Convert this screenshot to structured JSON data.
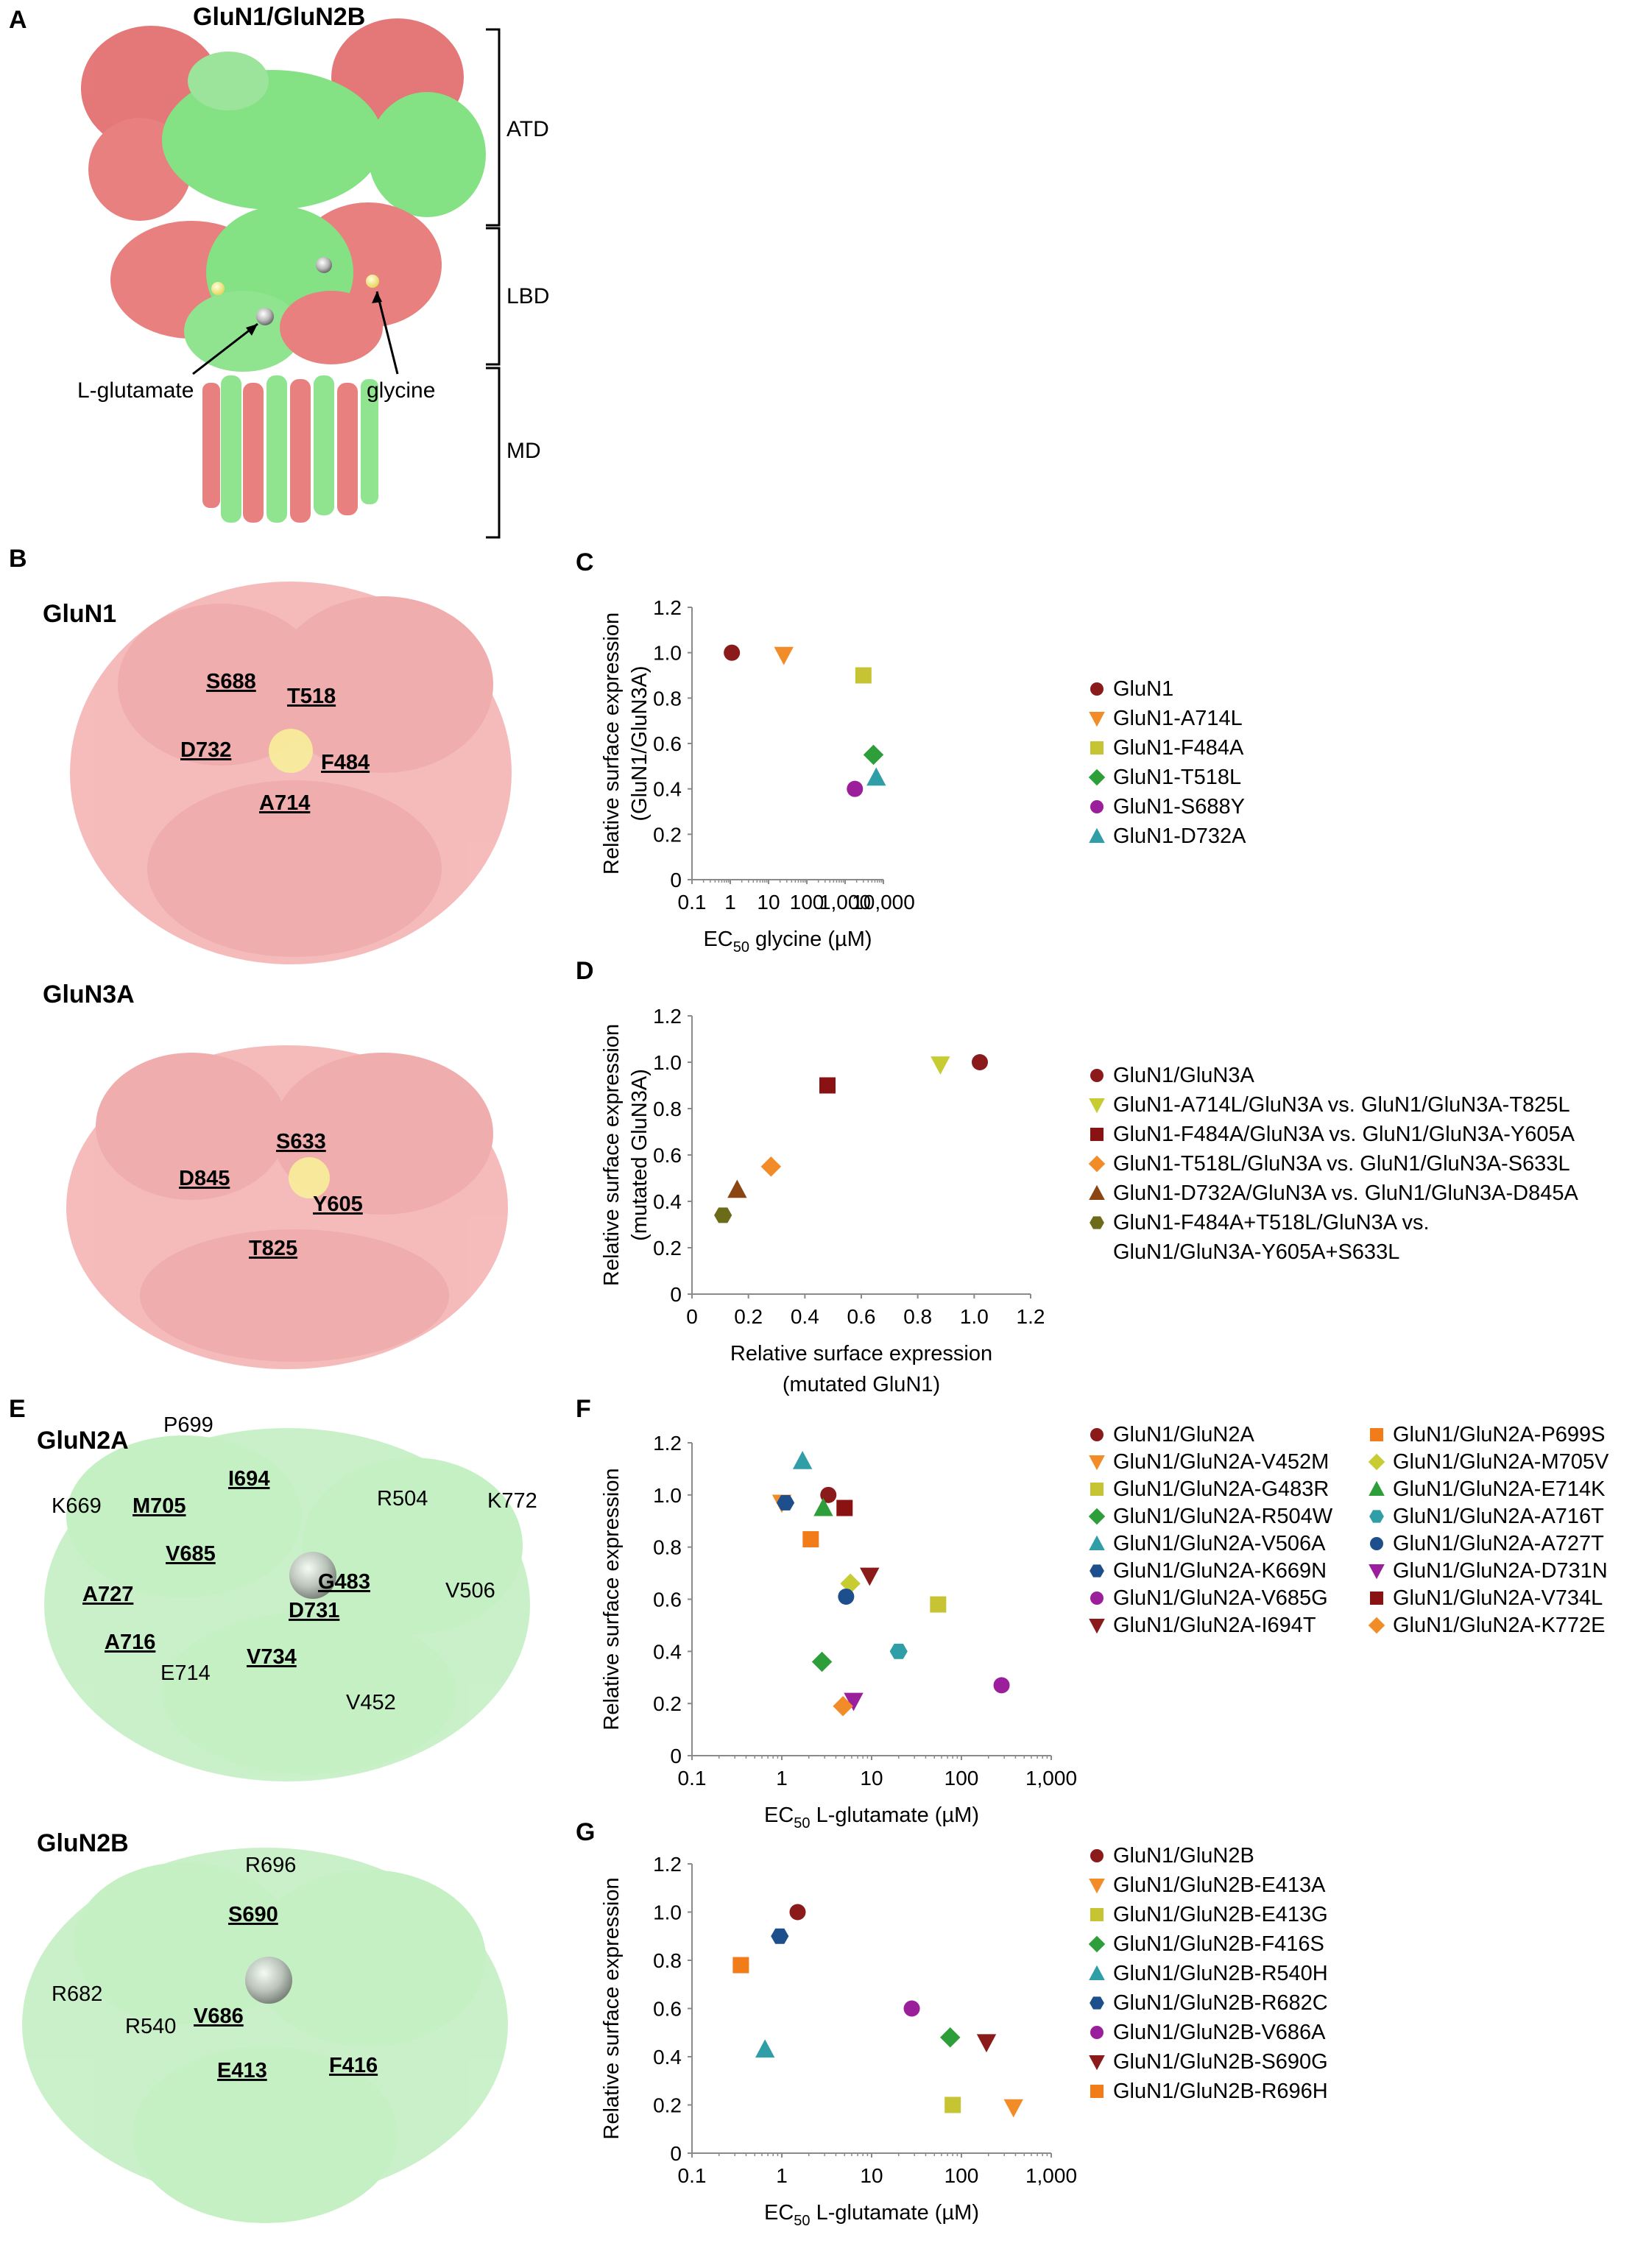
{
  "panels": {
    "A": {
      "label": "A",
      "title": "GluN1/GluN2B",
      "domains": [
        "ATD",
        "LBD",
        "MD"
      ],
      "annotations": [
        "L-glutamate",
        "glycine"
      ]
    },
    "B": {
      "label": "B",
      "top_title": "GluN1",
      "top_residues": [
        "S688",
        "T518",
        "D732",
        "F484",
        "A714"
      ],
      "bottom_title": "GluN3A",
      "bottom_residues": [
        "S633",
        "D845",
        "Y605",
        "T825"
      ]
    },
    "E": {
      "label": "E",
      "top_title": "GluN2A",
      "top_residues_underlined": [
        "I694",
        "M705",
        "V685",
        "G483",
        "A727",
        "D731",
        "A716",
        "V734"
      ],
      "top_residues_plain": [
        "P699",
        "K669",
        "R504",
        "K772",
        "V506",
        "E714",
        "V452"
      ],
      "bottom_title": "GluN2B",
      "bottom_residues_underlined": [
        "S690",
        "V686",
        "E413",
        "F416"
      ],
      "bottom_residues_plain": [
        "R696",
        "R682",
        "R540"
      ]
    }
  },
  "chart_data": [
    {
      "id": "C",
      "type": "scatter",
      "label": "C",
      "xscale": "log",
      "xlim": [
        0.1,
        10000
      ],
      "xticks": [
        0.1,
        1,
        10,
        100,
        1000,
        10000
      ],
      "xtick_labels": [
        "0.1",
        "1",
        "10",
        "100",
        "1,000",
        "10,000"
      ],
      "ylim": [
        0,
        1.2
      ],
      "yticks": [
        0,
        0.2,
        0.4,
        0.6,
        0.8,
        1.0,
        1.2
      ],
      "ytick_labels": [
        "0",
        "0.2",
        "0.4",
        "0.6",
        "0.8",
        "1.0",
        "1.2"
      ],
      "xlabel_pre": "EC",
      "xlabel_sub": "50",
      "xlabel_post": " glycine (µM)",
      "ylabel": [
        "Relative surface expression",
        "(GluN1/GluN3A)"
      ],
      "series": [
        {
          "name": "GluN1",
          "x": 1.1,
          "y": 1.0,
          "marker": "circle",
          "color": "#8b1a1a"
        },
        {
          "name": "GluN1-A714L",
          "x": 25,
          "y": 0.99,
          "marker": "tri-down",
          "color": "#f28c28"
        },
        {
          "name": "GluN1-F484A",
          "x": 3000,
          "y": 0.9,
          "marker": "square",
          "color": "#c7c433"
        },
        {
          "name": "GluN1-T518L",
          "x": 5500,
          "y": 0.55,
          "marker": "diamond",
          "color": "#2e9e3a"
        },
        {
          "name": "GluN1-S688Y",
          "x": 1800,
          "y": 0.4,
          "marker": "circle",
          "color": "#9b1f9b"
        },
        {
          "name": "GluN1-D732A",
          "x": 6500,
          "y": 0.45,
          "marker": "tri-up",
          "color": "#2f9ea6"
        }
      ]
    },
    {
      "id": "D",
      "type": "scatter",
      "label": "D",
      "xscale": "linear",
      "xlim": [
        0,
        1.2
      ],
      "xticks": [
        0,
        0.2,
        0.4,
        0.6,
        0.8,
        1.0,
        1.2
      ],
      "xtick_labels": [
        "0",
        "0.2",
        "0.4",
        "0.6",
        "0.8",
        "1.0",
        "1.2"
      ],
      "ylim": [
        0,
        1.2
      ],
      "yticks": [
        0,
        0.2,
        0.4,
        0.6,
        0.8,
        1.0,
        1.2
      ],
      "ytick_labels": [
        "0",
        "0.2",
        "0.4",
        "0.6",
        "0.8",
        "1.0",
        "1.2"
      ],
      "xlabel_lines": [
        "Relative surface expression",
        "(mutated GluN1)"
      ],
      "ylabel": [
        "Relative surface expression",
        "(mutated GluN3A)"
      ],
      "series": [
        {
          "name": "GluN1/GluN3A",
          "x": 1.02,
          "y": 1.0,
          "marker": "circle",
          "color": "#8b1a1a"
        },
        {
          "name": "GluN1-A714L/GluN3A vs. GluN1/GluN3A-T825L",
          "x": 0.88,
          "y": 0.99,
          "marker": "tri-down",
          "color": "#c7cc33"
        },
        {
          "name": "GluN1-F484A/GluN3A vs. GluN1/GluN3A-Y605A",
          "x": 0.48,
          "y": 0.9,
          "marker": "square",
          "color": "#8b1212"
        },
        {
          "name": "GluN1-T518L/GluN3A vs. GluN1/GluN3A-S633L",
          "x": 0.28,
          "y": 0.55,
          "marker": "diamond",
          "color": "#f28c28"
        },
        {
          "name": "GluN1-D732A/GluN3A vs. GluN1/GluN3A-D845A",
          "x": 0.16,
          "y": 0.45,
          "marker": "tri-up",
          "color": "#8b4513"
        },
        {
          "name": "GluN1-F484A+T518L/GluN3A vs.",
          "name2": "GluN1/GluN3A-Y605A+S633L",
          "x": 0.11,
          "y": 0.34,
          "marker": "hexagon",
          "color": "#6b6b1a"
        }
      ]
    },
    {
      "id": "F",
      "type": "scatter",
      "label": "F",
      "xscale": "log",
      "xlim": [
        0.1,
        1000
      ],
      "xticks": [
        0.1,
        1,
        10,
        100,
        1000
      ],
      "xtick_labels": [
        "0.1",
        "1",
        "10",
        "100",
        "1,000"
      ],
      "ylim": [
        0,
        1.2
      ],
      "yticks": [
        0,
        0.2,
        0.4,
        0.6,
        0.8,
        1.0,
        1.2
      ],
      "ytick_labels": [
        "0",
        "0.2",
        "0.4",
        "0.6",
        "0.8",
        "1.0",
        "1.2"
      ],
      "xlabel_pre": "EC",
      "xlabel_sub": "50",
      "xlabel_post": " L-glutamate (µM)",
      "ylabel": [
        "Relative surface expression"
      ],
      "series": [
        {
          "name": "GluN1/GluN2A",
          "x": 3.3,
          "y": 1.0,
          "marker": "circle",
          "color": "#8b1a1a"
        },
        {
          "name": "GluN1/GluN2A-V452M",
          "x": 1.0,
          "y": 0.97,
          "marker": "tri-down",
          "color": "#f28c28"
        },
        {
          "name": "GluN1/GluN2A-G483R",
          "x": 55,
          "y": 0.58,
          "marker": "square",
          "color": "#c7c433"
        },
        {
          "name": "GluN1/GluN2A-R504W",
          "x": 2.8,
          "y": 0.36,
          "marker": "diamond",
          "color": "#2e9e3a"
        },
        {
          "name": "GluN1/GluN2A-V506A",
          "x": 1.7,
          "y": 1.13,
          "marker": "tri-up",
          "color": "#2f9ea6"
        },
        {
          "name": "GluN1/GluN2A-K669N",
          "x": 1.1,
          "y": 0.97,
          "marker": "hexagon",
          "color": "#1c4f8c"
        },
        {
          "name": "GluN1/GluN2A-V685G",
          "x": 280,
          "y": 0.27,
          "marker": "circle",
          "color": "#9b1f9b"
        },
        {
          "name": "GluN1/GluN2A-I694T",
          "x": 9.5,
          "y": 0.69,
          "marker": "tri-down",
          "color": "#8b1a1a"
        },
        {
          "name": "GluN1/GluN2A-P699S",
          "x": 2.1,
          "y": 0.83,
          "marker": "square",
          "color": "#f27c1a"
        },
        {
          "name": "GluN1/GluN2A-M705V",
          "x": 5.8,
          "y": 0.66,
          "marker": "diamond",
          "color": "#c7cc33"
        },
        {
          "name": "GluN1/GluN2A-E714K",
          "x": 2.9,
          "y": 0.95,
          "marker": "tri-up",
          "color": "#2e9e3a"
        },
        {
          "name": "GluN1/GluN2A-A716T",
          "x": 20,
          "y": 0.4,
          "marker": "hexagon",
          "color": "#2f9ea6"
        },
        {
          "name": "GluN1/GluN2A-A727T",
          "x": 5.2,
          "y": 0.61,
          "marker": "circle",
          "color": "#1c4f8c"
        },
        {
          "name": "GluN1/GluN2A-D731N",
          "x": 6.3,
          "y": 0.21,
          "marker": "tri-down",
          "color": "#9b1f9b"
        },
        {
          "name": "GluN1/GluN2A-V734L",
          "x": 5.0,
          "y": 0.95,
          "marker": "square",
          "color": "#8b1212"
        },
        {
          "name": "GluN1/GluN2A-K772E",
          "x": 4.8,
          "y": 0.19,
          "marker": "diamond",
          "color": "#f28c28"
        }
      ]
    },
    {
      "id": "G",
      "type": "scatter",
      "label": "G",
      "xscale": "log",
      "xlim": [
        0.1,
        1000
      ],
      "xticks": [
        0.1,
        1,
        10,
        100,
        1000
      ],
      "xtick_labels": [
        "0.1",
        "1",
        "10",
        "100",
        "1,000"
      ],
      "ylim": [
        0,
        1.2
      ],
      "yticks": [
        0,
        0.2,
        0.4,
        0.6,
        0.8,
        1.0,
        1.2
      ],
      "ytick_labels": [
        "0",
        "0.2",
        "0.4",
        "0.6",
        "0.8",
        "1.0",
        "1.2"
      ],
      "xlabel_pre": "EC",
      "xlabel_sub": "50",
      "xlabel_post": " L-glutamate (µM)",
      "ylabel": [
        "Relative surface expression"
      ],
      "series": [
        {
          "name": "GluN1/GluN2B",
          "x": 1.5,
          "y": 1.0,
          "marker": "circle",
          "color": "#8b1a1a"
        },
        {
          "name": "GluN1/GluN2B-E413A",
          "x": 380,
          "y": 0.19,
          "marker": "tri-down",
          "color": "#f28c28"
        },
        {
          "name": "GluN1/GluN2B-E413G",
          "x": 80,
          "y": 0.2,
          "marker": "square",
          "color": "#c7c433"
        },
        {
          "name": "GluN1/GluN2B-F416S",
          "x": 75,
          "y": 0.48,
          "marker": "diamond",
          "color": "#2e9e3a"
        },
        {
          "name": "GluN1/GluN2B-R540H",
          "x": 0.65,
          "y": 0.43,
          "marker": "tri-up",
          "color": "#2f9ea6"
        },
        {
          "name": "GluN1/GluN2B-R682C",
          "x": 0.95,
          "y": 0.9,
          "marker": "hexagon",
          "color": "#1c4f8c"
        },
        {
          "name": "GluN1/GluN2B-V686A",
          "x": 28,
          "y": 0.6,
          "marker": "circle",
          "color": "#9b1f9b"
        },
        {
          "name": "GluN1/GluN2B-S690G",
          "x": 190,
          "y": 0.46,
          "marker": "tri-down",
          "color": "#8b1a1a"
        },
        {
          "name": "GluN1/GluN2B-R696H",
          "x": 0.35,
          "y": 0.78,
          "marker": "square",
          "color": "#f27c1a"
        }
      ]
    }
  ]
}
